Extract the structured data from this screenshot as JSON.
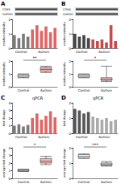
{
  "chart_data": [
    {
      "type": "bar",
      "panel_label": "A",
      "bands": [
        "CDK6",
        "GAPDH"
      ],
      "ylabel": "relative intensity",
      "categories": [
        null,
        null,
        null,
        null,
        null,
        null,
        null,
        null,
        null,
        null
      ],
      "values": [
        0.9,
        0.7,
        1.0,
        0.8,
        1.3,
        1.6,
        1.2,
        1.5,
        1.1,
        1.4
      ],
      "colors": [
        "#7a7a7a",
        "#7a7a7a",
        "#7a7a7a",
        "#7a7a7a",
        "#e06666",
        "#e06666",
        "#e06666",
        "#e06666",
        "#e06666",
        "#e06666"
      ],
      "groups": [
        {
          "label": "Control",
          "count": 4
        },
        {
          "label": "Autism",
          "count": 6
        }
      ],
      "ylim": [
        0,
        2
      ],
      "yticks": [
        0,
        1,
        2
      ]
    },
    {
      "type": "boxplot",
      "ylabel": "relative intensity",
      "categories": [
        "Control",
        "Autism"
      ],
      "values": [
        [
          0.7,
          0.75,
          0.85,
          0.95,
          1.0
        ],
        [
          1.1,
          1.2,
          1.35,
          1.5,
          1.6
        ]
      ],
      "colors": [
        "#ffffff",
        "#f4b6b6"
      ],
      "annotations": [
        "**"
      ],
      "ylim": [
        0,
        2
      ],
      "yticks": [
        0,
        1,
        2
      ]
    },
    {
      "type": "bar",
      "panel_label": "B",
      "bands": [
        "CDK4",
        "GAPDH"
      ],
      "ylabel": "relative intensity",
      "categories": [
        null,
        null,
        null,
        null,
        null,
        null,
        null,
        null,
        null,
        null
      ],
      "values": [
        1.0,
        0.8,
        0.9,
        0.7,
        0.6,
        0.5,
        0.6,
        0.4,
        1.6,
        0.5
      ],
      "colors": [
        "#444444",
        "#444444",
        "#444444",
        "#444444",
        "#c94a4a",
        "#c94a4a",
        "#c94a4a",
        "#c94a4a",
        "#c94a4a",
        "#c94a4a"
      ],
      "groups": [
        {
          "label": "Control",
          "count": 4
        },
        {
          "label": "Autism",
          "count": 6
        }
      ],
      "ylim": [
        0,
        2
      ],
      "yticks": [
        0,
        1,
        2
      ]
    },
    {
      "type": "boxplot",
      "ylabel": "relative intensity",
      "categories": [
        "Control",
        "Autism"
      ],
      "values": [
        [
          0.7,
          0.75,
          0.85,
          0.95,
          1.0
        ],
        [
          0.4,
          0.5,
          0.55,
          0.7,
          1.6
        ]
      ],
      "colors": [
        "#ffffff",
        "#f4b6b6"
      ],
      "annotations": [
        "*"
      ],
      "ylim": [
        0,
        2
      ],
      "yticks": [
        0,
        1,
        2
      ]
    },
    {
      "type": "bar",
      "panel_label": "C",
      "title": "qPCR",
      "ylabel": "fold change",
      "categories": [
        null,
        null,
        null,
        null,
        null,
        null,
        null,
        null,
        null,
        null
      ],
      "values": [
        1.0,
        1.2,
        0.9,
        1.1,
        2.0,
        2.6,
        1.8,
        2.3,
        2.9,
        2.1
      ],
      "colors": [
        "#7a7a7a",
        "#7a7a7a",
        "#7a7a7a",
        "#7a7a7a",
        "#e06666",
        "#e06666",
        "#e06666",
        "#e06666",
        "#e06666",
        "#e06666"
      ],
      "groups": [
        {
          "label": "Control",
          "count": 4
        },
        {
          "label": "Autism",
          "count": 6
        }
      ],
      "ylim": [
        0,
        4
      ],
      "yticks": [
        0,
        1,
        2,
        3,
        4
      ]
    },
    {
      "type": "boxplot",
      "ylabel": "average fold change",
      "categories": [
        "Control",
        "Autism"
      ],
      "values": [
        [
          0.9,
          0.95,
          1.05,
          1.15,
          1.2
        ],
        [
          1.8,
          2.0,
          2.25,
          2.6,
          2.9
        ]
      ],
      "colors": [
        "#ffffff",
        "#f4b6b6"
      ],
      "annotations": [
        "*"
      ],
      "ylim": [
        0,
        4
      ],
      "yticks": [
        0,
        1,
        2,
        3,
        4
      ]
    },
    {
      "type": "bar",
      "panel_label": "D",
      "title": "qPCR",
      "ylabel": "fold change",
      "categories": [
        null,
        null,
        null,
        null,
        null,
        null,
        null,
        null,
        null,
        null
      ],
      "values": [
        1.6,
        1.5,
        1.3,
        1.4,
        1.1,
        1.0,
        0.9,
        1.0,
        0.8,
        0.9
      ],
      "colors": [
        "#555555",
        "#555555",
        "#555555",
        "#555555",
        "#aaaaaa",
        "#aaaaaa",
        "#aaaaaa",
        "#aaaaaa",
        "#aaaaaa",
        "#aaaaaa"
      ],
      "groups": [
        {
          "label": "Control",
          "count": 4
        },
        {
          "label": "Autism",
          "count": 6
        }
      ],
      "ylim": [
        0,
        2
      ],
      "yticks": [
        0,
        1,
        2
      ]
    },
    {
      "type": "boxplot",
      "ylabel": "average fold change",
      "categories": [
        "Control",
        "Autism"
      ],
      "values": [
        [
          1.3,
          1.35,
          1.45,
          1.55,
          1.6
        ],
        [
          0.8,
          0.85,
          0.9,
          1.0,
          1.1
        ]
      ],
      "colors": [
        "#ffffff",
        "#dddddd"
      ],
      "annotations": [
        "***"
      ],
      "ylim": [
        0,
        2
      ],
      "yticks": [
        0,
        1,
        2
      ]
    }
  ]
}
